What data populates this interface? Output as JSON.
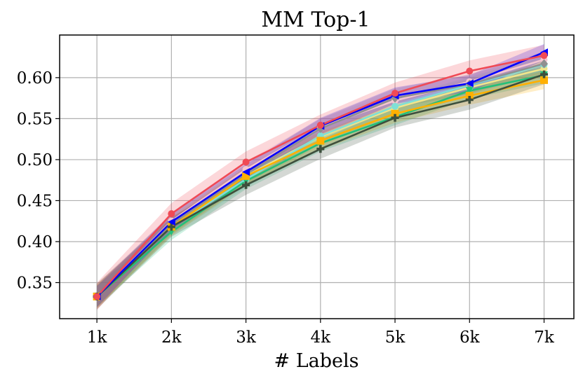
{
  "chart_data": {
    "type": "line",
    "title": "MM Top-1",
    "xlabel": "# Labels",
    "ylabel": "",
    "x": [
      "1k",
      "2k",
      "3k",
      "4k",
      "5k",
      "6k",
      "7k"
    ],
    "xlim": [
      0.5,
      7.4
    ],
    "ylim": [
      0.306,
      0.652
    ],
    "yticks": [
      0.35,
      0.4,
      0.45,
      0.5,
      0.55,
      0.6
    ],
    "ytick_labels": [
      "0.35",
      "0.40",
      "0.45",
      "0.50",
      "0.55",
      "0.60"
    ],
    "grid": true,
    "legend": "none",
    "series": [
      {
        "color": "#f5c6d0",
        "marker": "circle",
        "values": [
          0.333,
          0.425,
          0.488,
          0.54,
          0.572,
          0.595,
          0.622
        ],
        "band": 0.01
      },
      {
        "color": "#f2e58a",
        "marker": "circle",
        "values": [
          0.333,
          0.421,
          0.48,
          0.528,
          0.563,
          0.588,
          0.611
        ],
        "band": 0.011
      },
      {
        "color": "#7fe0d6",
        "marker": "circle",
        "values": [
          0.333,
          0.418,
          0.476,
          0.529,
          0.565,
          0.591,
          0.616
        ],
        "band": 0.01
      },
      {
        "color": "#909090",
        "marker": "diamond",
        "values": [
          0.333,
          0.421,
          0.482,
          0.538,
          0.575,
          0.592,
          0.617
        ],
        "band": 0.012
      },
      {
        "color": "#22c07a",
        "marker": "triangle-down",
        "values": [
          0.333,
          0.412,
          0.474,
          0.52,
          0.552,
          0.584,
          0.603
        ],
        "band": 0.01
      },
      {
        "color": "#ffb000",
        "marker": "square",
        "values": [
          0.333,
          0.418,
          0.48,
          0.523,
          0.556,
          0.578,
          0.597
        ],
        "band": 0.011
      },
      {
        "color": "#3d4f3d",
        "marker": "plus",
        "values": [
          0.333,
          0.418,
          0.469,
          0.513,
          0.551,
          0.573,
          0.604
        ],
        "band": 0.012
      },
      {
        "color": "#0000ff",
        "marker": "triangle-left",
        "values": [
          0.333,
          0.424,
          0.485,
          0.541,
          0.578,
          0.593,
          0.631
        ],
        "band": 0.01
      },
      {
        "color": "#f04a55",
        "marker": "circle",
        "values": [
          0.333,
          0.434,
          0.497,
          0.542,
          0.581,
          0.608,
          0.627
        ],
        "band": 0.013
      }
    ]
  }
}
